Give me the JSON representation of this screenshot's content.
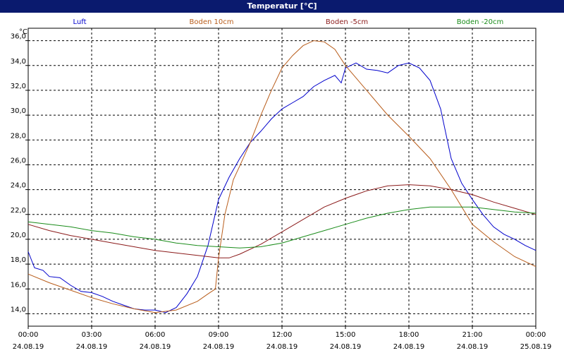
{
  "window": {
    "title": "Temperatur [°C]"
  },
  "chart_data": {
    "type": "line",
    "title": "Temperatur [°C]",
    "ylabel": "°C",
    "ylim": [
      13.0,
      37.0
    ],
    "ytick_values": [
      14,
      16,
      18,
      20,
      22,
      24,
      26,
      28,
      30,
      32,
      34,
      36
    ],
    "ytick_labels": [
      "14,0",
      "16,0",
      "18,0",
      "20,0",
      "22,0",
      "24,0",
      "26,0",
      "28,0",
      "30,0",
      "32,0",
      "34,0",
      "36,0"
    ],
    "xlim": [
      0,
      24
    ],
    "xtick_values": [
      0,
      3,
      6,
      9,
      12,
      15,
      18,
      21,
      24
    ],
    "xtick_time_labels": [
      "00:00",
      "03:00",
      "06:00",
      "09:00",
      "12:00",
      "15:00",
      "18:00",
      "21:00",
      "00:00"
    ],
    "xtick_date_labels": [
      "24.08.19",
      "24.08.19",
      "24.08.19",
      "24.08.19",
      "24.08.19",
      "24.08.19",
      "24.08.19",
      "24.08.19",
      "25.08.19"
    ],
    "grid": true,
    "legend_position": "top",
    "series": [
      {
        "name": "Luft",
        "color": "#0000cc",
        "points": [
          [
            0,
            19.0
          ],
          [
            0.3,
            17.7
          ],
          [
            0.7,
            17.5
          ],
          [
            1.0,
            17.0
          ],
          [
            1.5,
            16.9
          ],
          [
            2.0,
            16.3
          ],
          [
            2.5,
            15.8
          ],
          [
            3.0,
            15.7
          ],
          [
            3.5,
            15.4
          ],
          [
            4.0,
            15.0
          ],
          [
            4.5,
            14.7
          ],
          [
            5.0,
            14.4
          ],
          [
            5.5,
            14.3
          ],
          [
            6.0,
            14.3
          ],
          [
            6.5,
            14.1
          ],
          [
            7.0,
            14.5
          ],
          [
            7.5,
            15.6
          ],
          [
            8.0,
            17.0
          ],
          [
            8.5,
            19.5
          ],
          [
            9.0,
            23.2
          ],
          [
            9.5,
            25.0
          ],
          [
            10.0,
            26.5
          ],
          [
            10.5,
            27.8
          ],
          [
            11.0,
            28.7
          ],
          [
            11.5,
            29.7
          ],
          [
            12.0,
            30.5
          ],
          [
            12.5,
            31.0
          ],
          [
            13.0,
            31.5
          ],
          [
            13.5,
            32.3
          ],
          [
            14.0,
            32.8
          ],
          [
            14.5,
            33.2
          ],
          [
            14.8,
            32.6
          ],
          [
            15.0,
            33.8
          ],
          [
            15.5,
            34.2
          ],
          [
            16.0,
            33.7
          ],
          [
            16.5,
            33.6
          ],
          [
            17.0,
            33.4
          ],
          [
            17.5,
            34.0
          ],
          [
            18.0,
            34.2
          ],
          [
            18.5,
            33.8
          ],
          [
            19.0,
            32.8
          ],
          [
            19.5,
            30.5
          ],
          [
            20.0,
            26.5
          ],
          [
            20.5,
            24.5
          ],
          [
            21.0,
            23.2
          ],
          [
            21.5,
            22.0
          ],
          [
            22.0,
            21.0
          ],
          [
            22.5,
            20.4
          ],
          [
            23.0,
            20.0
          ],
          [
            23.5,
            19.5
          ],
          [
            24.0,
            19.1
          ]
        ]
      },
      {
        "name": "Boden 10cm",
        "color": "#b85c1a",
        "points": [
          [
            0,
            17.2
          ],
          [
            1.0,
            16.5
          ],
          [
            2.0,
            15.9
          ],
          [
            3.0,
            15.3
          ],
          [
            4.0,
            14.8
          ],
          [
            5.0,
            14.4
          ],
          [
            6.0,
            14.1
          ],
          [
            7.0,
            14.3
          ],
          [
            8.0,
            15.0
          ],
          [
            8.5,
            15.6
          ],
          [
            8.85,
            16.0
          ],
          [
            9.0,
            18.5
          ],
          [
            9.3,
            22.0
          ],
          [
            9.7,
            24.8
          ],
          [
            10.0,
            25.9
          ],
          [
            10.5,
            27.8
          ],
          [
            11.0,
            30.0
          ],
          [
            11.5,
            32.0
          ],
          [
            12.0,
            33.8
          ],
          [
            12.5,
            34.8
          ],
          [
            13.0,
            35.6
          ],
          [
            13.5,
            36.0
          ],
          [
            14.0,
            35.9
          ],
          [
            14.5,
            35.3
          ],
          [
            15.0,
            34.0
          ],
          [
            16.0,
            32.0
          ],
          [
            17.0,
            30.0
          ],
          [
            18.0,
            28.3
          ],
          [
            19.0,
            26.5
          ],
          [
            20.0,
            24.0
          ],
          [
            21.0,
            21.2
          ],
          [
            22.0,
            19.8
          ],
          [
            23.0,
            18.6
          ],
          [
            24.0,
            17.8
          ]
        ]
      },
      {
        "name": "Boden -5cm",
        "color": "#8b1a1a",
        "points": [
          [
            0,
            21.2
          ],
          [
            1.0,
            20.7
          ],
          [
            2.0,
            20.3
          ],
          [
            3.0,
            20.0
          ],
          [
            4.0,
            19.7
          ],
          [
            5.0,
            19.4
          ],
          [
            6.0,
            19.1
          ],
          [
            7.0,
            18.9
          ],
          [
            8.0,
            18.7
          ],
          [
            9.0,
            18.5
          ],
          [
            9.5,
            18.5
          ],
          [
            10.0,
            18.8
          ],
          [
            11.0,
            19.6
          ],
          [
            12.0,
            20.6
          ],
          [
            13.0,
            21.6
          ],
          [
            14.0,
            22.6
          ],
          [
            15.0,
            23.3
          ],
          [
            16.0,
            23.9
          ],
          [
            17.0,
            24.3
          ],
          [
            18.0,
            24.4
          ],
          [
            19.0,
            24.3
          ],
          [
            20.0,
            24.0
          ],
          [
            21.0,
            23.6
          ],
          [
            22.0,
            23.0
          ],
          [
            23.0,
            22.5
          ],
          [
            24.0,
            22.0
          ]
        ]
      },
      {
        "name": "Boden -20cm",
        "color": "#1a8c1a",
        "points": [
          [
            0,
            21.4
          ],
          [
            1.0,
            21.2
          ],
          [
            2.0,
            21.0
          ],
          [
            3.0,
            20.7
          ],
          [
            4.0,
            20.5
          ],
          [
            5.0,
            20.2
          ],
          [
            6.0,
            20.0
          ],
          [
            7.0,
            19.7
          ],
          [
            8.0,
            19.5
          ],
          [
            9.0,
            19.4
          ],
          [
            10.0,
            19.3
          ],
          [
            11.0,
            19.4
          ],
          [
            12.0,
            19.7
          ],
          [
            13.0,
            20.2
          ],
          [
            14.0,
            20.7
          ],
          [
            15.0,
            21.2
          ],
          [
            16.0,
            21.7
          ],
          [
            17.0,
            22.1
          ],
          [
            18.0,
            22.4
          ],
          [
            19.0,
            22.6
          ],
          [
            20.0,
            22.6
          ],
          [
            21.0,
            22.6
          ],
          [
            22.0,
            22.4
          ],
          [
            23.0,
            22.2
          ],
          [
            24.0,
            22.1
          ]
        ]
      }
    ]
  }
}
